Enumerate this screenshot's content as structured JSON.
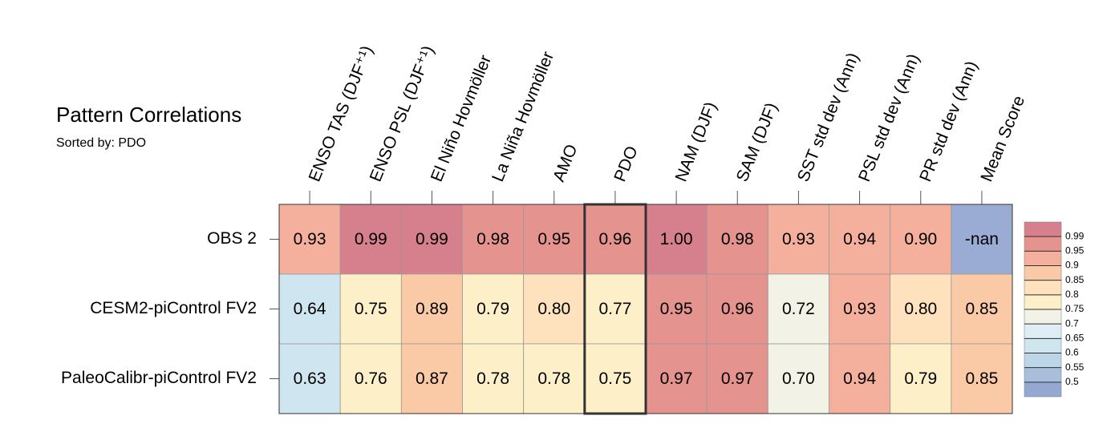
{
  "chart_data": {
    "type": "heatmap",
    "title": "Pattern Correlations",
    "subtitle": "Sorted by: PDO",
    "columns": [
      "ENSO TAS (DJF⁺¹)",
      "ENSO PSL (DJF⁺¹)",
      "El Niño Hovmöller",
      "La Niña Hovmöller",
      "AMO",
      "PDO",
      "NAM (DJF)",
      "SAM (DJF)",
      "SST std dev (Ann)",
      "PSL std dev (Ann)",
      "PR std dev (Ann)",
      "Mean Score"
    ],
    "rows": [
      "OBS 2",
      "CESM2-piControl FV2",
      "PaleoCalibr-piControl FV2"
    ],
    "values": [
      [
        0.93,
        0.99,
        0.99,
        0.98,
        0.95,
        0.96,
        1.0,
        0.98,
        0.93,
        0.94,
        0.9,
        null
      ],
      [
        0.64,
        0.75,
        0.89,
        0.79,
        0.8,
        0.77,
        0.95,
        0.96,
        0.72,
        0.93,
        0.8,
        0.85
      ],
      [
        0.63,
        0.76,
        0.87,
        0.78,
        0.78,
        0.75,
        0.97,
        0.97,
        0.7,
        0.94,
        0.79,
        0.85
      ]
    ],
    "value_labels": [
      [
        "0.93",
        "0.99",
        "0.99",
        "0.98",
        "0.95",
        "0.96",
        "1.00",
        "0.98",
        "0.93",
        "0.94",
        "0.90",
        "-nan"
      ],
      [
        "0.64",
        "0.75",
        "0.89",
        "0.79",
        "0.80",
        "0.77",
        "0.95",
        "0.96",
        "0.72",
        "0.93",
        "0.80",
        "0.85"
      ],
      [
        "0.63",
        "0.76",
        "0.87",
        "0.78",
        "0.78",
        "0.75",
        "0.97",
        "0.97",
        "0.70",
        "0.94",
        "0.79",
        "0.85"
      ]
    ],
    "highlight_column": 5,
    "colorbar_ticks": [
      0.5,
      0.55,
      0.6,
      0.65,
      0.7,
      0.75,
      0.8,
      0.85,
      0.9,
      0.95,
      0.99
    ],
    "colors": [
      "#95a8d1",
      "#a9bedb",
      "#bcd6e7",
      "#cfe5ef",
      "#deeef4",
      "#f3f2e6",
      "#fdf0c9",
      "#fde2bd",
      "#f9caa5",
      "#f4b09c",
      "#e5938f",
      "#d67f8d"
    ],
    "missing_color": "#9aacd3"
  }
}
